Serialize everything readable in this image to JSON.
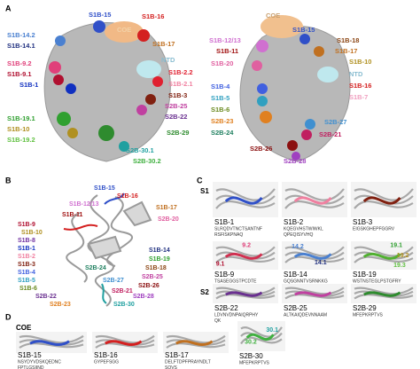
{
  "panel_a": {
    "letter": "A",
    "left": [
      {
        "text": "S1B-15",
        "color": "#3050c8"
      },
      {
        "text": "COE",
        "color": "#f3d2a8"
      },
      {
        "text": "S1B-16",
        "color": "#d42020"
      },
      {
        "text": "S1B-14.2",
        "color": "#4a80d0"
      },
      {
        "text": "S1B-17",
        "color": "#c07020"
      },
      {
        "text": "S1B-14.1",
        "color": "#203080"
      },
      {
        "text": "S1B-9.2",
        "color": "#e0407a"
      },
      {
        "text": "NTD",
        "color": "#88bcd0"
      },
      {
        "text": "S1B-9.1",
        "color": "#b01030"
      },
      {
        "text": "S1B-2.2",
        "color": "#e02030"
      },
      {
        "text": "S1B-1",
        "color": "#1030c0"
      },
      {
        "text": "S1B-2.1",
        "color": "#f080a0"
      },
      {
        "text": "S1B-3",
        "color": "#802010"
      },
      {
        "text": "S2B-25",
        "color": "#c040a0"
      },
      {
        "text": "S1B-19.1",
        "color": "#30a030"
      },
      {
        "text": "S2B-22",
        "color": "#6a3090"
      },
      {
        "text": "S1B-10",
        "color": "#b09020"
      },
      {
        "text": "S2B-29",
        "color": "#2e8b2e"
      },
      {
        "text": "S1B-19.2",
        "color": "#60c040"
      },
      {
        "text": "S2B-30.1",
        "color": "#20a0a0"
      },
      {
        "text": "S2B-30.2",
        "color": "#40b040"
      }
    ],
    "right": [
      {
        "text": "COE",
        "color": "#c9a070"
      },
      {
        "text": "S1B-15",
        "color": "#3050c8"
      },
      {
        "text": "S1B-12/13",
        "color": "#d070d0"
      },
      {
        "text": "S1B-18",
        "color": "#8b4513"
      },
      {
        "text": "S1B-11",
        "color": "#a01010"
      },
      {
        "text": "S1B-17",
        "color": "#c07020"
      },
      {
        "text": "S1B-10",
        "color": "#b09020"
      },
      {
        "text": "S1B-20",
        "color": "#e060a0"
      },
      {
        "text": "NTD",
        "color": "#88bcd0"
      },
      {
        "text": "S1B-16",
        "color": "#d42020"
      },
      {
        "text": "S1B-4",
        "color": "#4060e0"
      },
      {
        "text": "S1B-7",
        "color": "#f0a0c0"
      },
      {
        "text": "S1B-5",
        "color": "#30a0c0"
      },
      {
        "text": "S1B-6",
        "color": "#6a8a20"
      },
      {
        "text": "S2B-23",
        "color": "#e08020"
      },
      {
        "text": "S2B-27",
        "color": "#4090d0"
      },
      {
        "text": "S2B-24",
        "color": "#208060"
      },
      {
        "text": "S2B-21",
        "color": "#c02060"
      },
      {
        "text": "S2B-26",
        "color": "#8b1010"
      },
      {
        "text": "S2B-28",
        "color": "#a040c0"
      }
    ]
  },
  "panel_b": {
    "letter": "B",
    "labels": [
      {
        "text": "S1B-15",
        "color": "#3050c8"
      },
      {
        "text": "S1B-16",
        "color": "#d42020"
      },
      {
        "text": "S1B-12/13",
        "color": "#d070d0"
      },
      {
        "text": "S1B-11",
        "color": "#a01010"
      },
      {
        "text": "S1B-17",
        "color": "#c07020"
      },
      {
        "text": "S1B-9",
        "color": "#b01030"
      },
      {
        "text": "S2B-20",
        "color": "#e060a0"
      },
      {
        "text": "S1B-10",
        "color": "#b09020"
      },
      {
        "text": "S1B-8",
        "color": "#7030a0"
      },
      {
        "text": "S1B-14",
        "color": "#203080"
      },
      {
        "text": "S1B-1",
        "color": "#1030c0"
      },
      {
        "text": "S1B-2",
        "color": "#f080a0"
      },
      {
        "text": "S1B-19",
        "color": "#30a030"
      },
      {
        "text": "S1B-3",
        "color": "#802010"
      },
      {
        "text": "S1B-18",
        "color": "#8b4513"
      },
      {
        "text": "S1B-4",
        "color": "#4060e0"
      },
      {
        "text": "S2B-25",
        "color": "#c040a0"
      },
      {
        "text": "S1B-5",
        "color": "#30a0c0"
      },
      {
        "text": "S2B-26",
        "color": "#8b1010"
      },
      {
        "text": "S1B-6",
        "color": "#6a8a20"
      },
      {
        "text": "S2B-27",
        "color": "#4090d0"
      },
      {
        "text": "S2B-22",
        "color": "#6a3090"
      },
      {
        "text": "S2B-21",
        "color": "#c02060"
      },
      {
        "text": "S2B-23",
        "color": "#e08020"
      },
      {
        "text": "S2B-24",
        "color": "#208060"
      },
      {
        "text": "S2B-28",
        "color": "#a040c0"
      },
      {
        "text": "S2B-30",
        "color": "#20a0a0"
      }
    ]
  },
  "panel_c": {
    "letter": "C",
    "s1": "S1",
    "s2": "S2",
    "cells": [
      {
        "title": "S1B-1",
        "sequence": [
          "SLRQDVTNCTSANTNF",
          "RSFISKPNAQ"
        ],
        "color": "#3050c8",
        "marks": []
      },
      {
        "title": "S1B-2",
        "sequence": [
          "KQEGVHSTWIWKL",
          "QPEQISYVHQ"
        ],
        "color": "#f080a0",
        "marks": []
      },
      {
        "title": "S1B-3",
        "sequence": [
          "EIGSKGHEPFGGRV"
        ],
        "color": "#802010",
        "marks": []
      },
      {
        "title": "S1B-9",
        "sequence": [
          "TSASEGGSTPCDTE",
          "NCDLT"
        ],
        "color": "#d03050",
        "marks": [
          {
            "text": "9.2",
            "color": "#e0407a"
          },
          {
            "text": "9.1",
            "color": "#b01030"
          }
        ]
      },
      {
        "title": "S1B-14",
        "sequence": [
          "GQSGNNTVSRNKKG",
          "LSSHSSGEY"
        ],
        "color": "#4a80d0",
        "marks": [
          {
            "text": "14.2",
            "color": "#4a80d0"
          },
          {
            "text": "14.1",
            "color": "#203080"
          }
        ]
      },
      {
        "title": "S1B-19",
        "sequence": [
          "WSTNSTEGLPSTGFRY",
          "HSFVTEIPRA"
        ],
        "color": "#50b030",
        "marks": [
          {
            "text": "19.1",
            "color": "#30a030"
          },
          {
            "text": "19.2",
            "color": "#b09020"
          },
          {
            "text": "19.3",
            "color": "#60c040"
          }
        ]
      },
      {
        "title": "S2B-22",
        "sequence": [
          "LDVNVDNPAIQRPHY",
          "QK"
        ],
        "color": "#6a3090",
        "marks": []
      },
      {
        "title": "S2B-25",
        "sequence": [
          "ALTKAIQDEVNNAAM"
        ],
        "color": "#c040a0",
        "marks": []
      },
      {
        "title": "S2B-29",
        "sequence": [
          "MFEPKRPTVS"
        ],
        "color": "#2e8b2e",
        "marks": []
      }
    ]
  },
  "panel_d": {
    "letter": "D",
    "group": "COE",
    "cells": [
      {
        "title": "S1B-15",
        "sequence": [
          "NSYDYVDSKQEDNC",
          "FPTLGSIIND"
        ],
        "color": "#3050c8",
        "marks": []
      },
      {
        "title": "S1B-16",
        "sequence": [
          "GYPEFSGG"
        ],
        "color": "#d42020",
        "marks": []
      },
      {
        "title": "S1B-17",
        "sequence": [
          "DELFTDPFPRAYNDLT",
          "SQVS"
        ],
        "color": "#c07020",
        "marks": []
      },
      {
        "title": "S2B-30",
        "sequence": [
          "MFEPKRPTVS"
        ],
        "color": "#40b040",
        "marks": [
          {
            "text": "30.2",
            "color": "#40b040"
          },
          {
            "text": "30.1",
            "color": "#20a0a0"
          }
        ]
      }
    ]
  }
}
